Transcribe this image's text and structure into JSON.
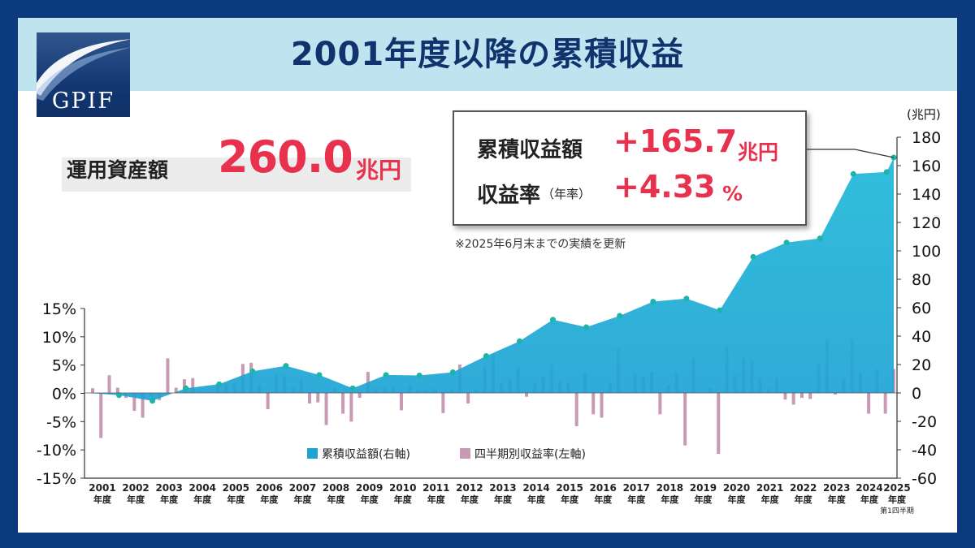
{
  "title": "2001年度以降の累積収益",
  "logo": {
    "text": "GPIF"
  },
  "assets": {
    "label": "運用資産額",
    "value": "260.0",
    "unit": "兆円"
  },
  "highlight": {
    "cumulative_label": "累積収益額",
    "cumulative_value": "+165.7",
    "cumulative_unit": "兆円",
    "rate_label": "収益率",
    "rate_sub": "（年率）",
    "rate_value": "+4.33",
    "rate_unit": "%"
  },
  "note": "※2025年6月末までの実績を更新",
  "colors": {
    "area": "#1ea3d4",
    "area_top": "#1fb8d8",
    "bar": "#c99ab3",
    "accent": "#e8314d",
    "frame": "#0c3a7e",
    "title_bg": "#bfe3ef"
  },
  "chart_data": {
    "type": "area",
    "right_axis_unit": "(兆円)",
    "left_ticks": [
      "15%",
      "10%",
      "5%",
      "0%",
      "-5%",
      "-10%",
      "-15%"
    ],
    "right_ticks": [
      "180",
      "160",
      "140",
      "120",
      "100",
      "80",
      "60",
      "40",
      "20",
      "0",
      "-20",
      "-40",
      "-60"
    ],
    "left_range": [
      -15,
      15
    ],
    "right_range": [
      -60,
      180
    ],
    "year_labels": [
      "2001",
      "2002",
      "2003",
      "2004",
      "2005",
      "2006",
      "2007",
      "2008",
      "2009",
      "2010",
      "2011",
      "2012",
      "2013",
      "2014",
      "2015",
      "2016",
      "2017",
      "2018",
      "2019",
      "2020",
      "2021",
      "2022",
      "2023",
      "2024",
      "2025"
    ],
    "year_suffix": "年度",
    "last_note": "第1四半期",
    "legend": [
      "累積収益額(右軸)",
      "四半期別収益率(左軸)"
    ],
    "series": [
      {
        "name": "累積収益額(右軸)",
        "axis": "right",
        "values": [
          -1.6,
          -5.6,
          3.3,
          6.1,
          15.2,
          19.1,
          12.6,
          3.3,
          12.6,
          12.3,
          14.6,
          26.0,
          36.4,
          51.6,
          46.3,
          54.3,
          64.3,
          66.4,
          58.2,
          95.8,
          105.9,
          108.8,
          154.1,
          155.5,
          165.7
        ]
      },
      {
        "name": "四半期別収益率(左軸)",
        "axis": "left",
        "values": [
          0.9,
          -7.9,
          3.2,
          1.0,
          -0.8,
          -3.1,
          -4.3,
          -0.5,
          -1.2,
          6.2,
          1.0,
          2.5,
          2.7,
          0.5,
          0.3,
          1.7,
          1.7,
          1.8,
          5.2,
          5.4,
          1.5,
          -2.8,
          3.2,
          3.1,
          1.0,
          2.6,
          -1.8,
          -1.6,
          -5.6,
          1.0,
          -3.6,
          -5.0,
          -0.8,
          3.8,
          0.8,
          1.1,
          1.2,
          -3.0,
          1.5,
          0.5,
          0.5,
          0.8,
          -3.5,
          0.7,
          5.1,
          -1.8,
          0.5,
          4.8,
          6.9,
          1.9,
          2.6,
          4.7,
          -0.6,
          1.8,
          2.9,
          5.1,
          2.1,
          1.8,
          -5.8,
          3.6,
          -3.7,
          -4.3,
          1.9,
          8.1,
          0.1,
          3.5,
          2.9,
          3.9,
          -3.7,
          1.5,
          3.5,
          -9.2,
          6.2,
          0.1,
          1.0,
          -10.7,
          8.3,
          3.1,
          6.2,
          5.6,
          2.7,
          0.8,
          2.8,
          -1.1,
          -2.0,
          -0.8,
          -1.0,
          5.4,
          9.5,
          -0.2,
          2.5,
          9.6,
          3.6,
          -3.6,
          4.3,
          -3.6,
          4.3
        ]
      }
    ],
    "grid": false
  }
}
